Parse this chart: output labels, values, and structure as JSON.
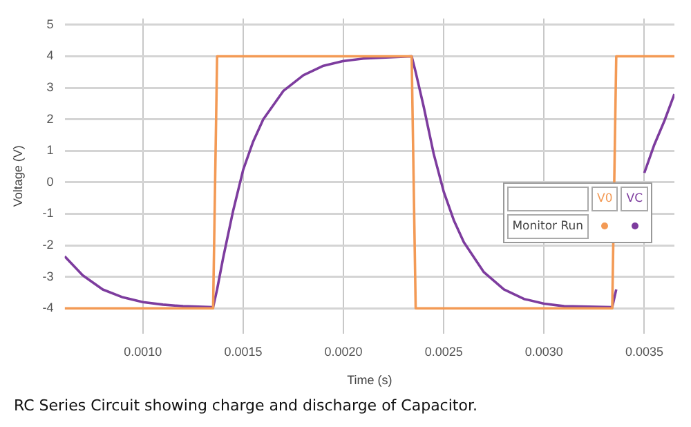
{
  "chart_data": {
    "type": "line",
    "xlabel": "Time (s)",
    "ylabel": "Voltage (V)",
    "legend_title": "Monitor Run",
    "legend": "right",
    "grid": true,
    "marker": "none",
    "line_style": "solid",
    "xlim": [
      0.00061,
      0.00365
    ],
    "ylim": [
      -4.8,
      5.2
    ],
    "xticks": [
      {
        "value": 0.001,
        "label": "0.0010"
      },
      {
        "value": 0.0015,
        "label": "0.0015"
      },
      {
        "value": 0.002,
        "label": "0.0020"
      },
      {
        "value": 0.0025,
        "label": "0.0025"
      },
      {
        "value": 0.003,
        "label": "0.0030"
      },
      {
        "value": 0.0035,
        "label": "0.0035"
      }
    ],
    "yticks": [
      -4,
      -3,
      -2,
      -1,
      0,
      1,
      2,
      3,
      4,
      5
    ],
    "series": [
      {
        "name": "V0",
        "color": "#f39a55",
        "x": [
          0.00061,
          0.00135,
          0.00137,
          0.00234,
          0.00236,
          0.00334,
          0.00336,
          0.00365
        ],
        "values": [
          -4,
          -4,
          4,
          4,
          -4,
          -4,
          4,
          4
        ]
      },
      {
        "name": "VC",
        "color": "#7d3c9e",
        "x": [
          0.00061,
          0.0007,
          0.0008,
          0.0009,
          0.001,
          0.0011,
          0.0012,
          0.00135,
          0.00137,
          0.0014,
          0.00145,
          0.0015,
          0.00155,
          0.0016,
          0.0017,
          0.0018,
          0.0019,
          0.002,
          0.0021,
          0.00234,
          0.00236,
          0.0024,
          0.00245,
          0.0025,
          0.00255,
          0.0026,
          0.0027,
          0.0028,
          0.0029,
          0.003,
          0.0031,
          0.00334,
          0.00336,
          0.0034,
          0.00345,
          0.0035,
          0.00355,
          0.0036,
          0.00365
        ],
        "values": [
          -2.35,
          -2.95,
          -3.4,
          -3.65,
          -3.8,
          -3.88,
          -3.93,
          -3.96,
          -3.4,
          -2.4,
          -0.9,
          0.4,
          1.3,
          2,
          2.9,
          3.4,
          3.7,
          3.85,
          3.93,
          4,
          3.5,
          2.4,
          0.9,
          -0.3,
          -1.2,
          -1.9,
          -2.85,
          -3.4,
          -3.7,
          -3.85,
          -3.93,
          -3.96,
          -3.4,
          null,
          null,
          0.3,
          1.2,
          1.95,
          2.8
        ]
      }
    ],
    "annotations": [
      "RC Series Circuit showing charge and discharge of Capacitor."
    ]
  }
}
